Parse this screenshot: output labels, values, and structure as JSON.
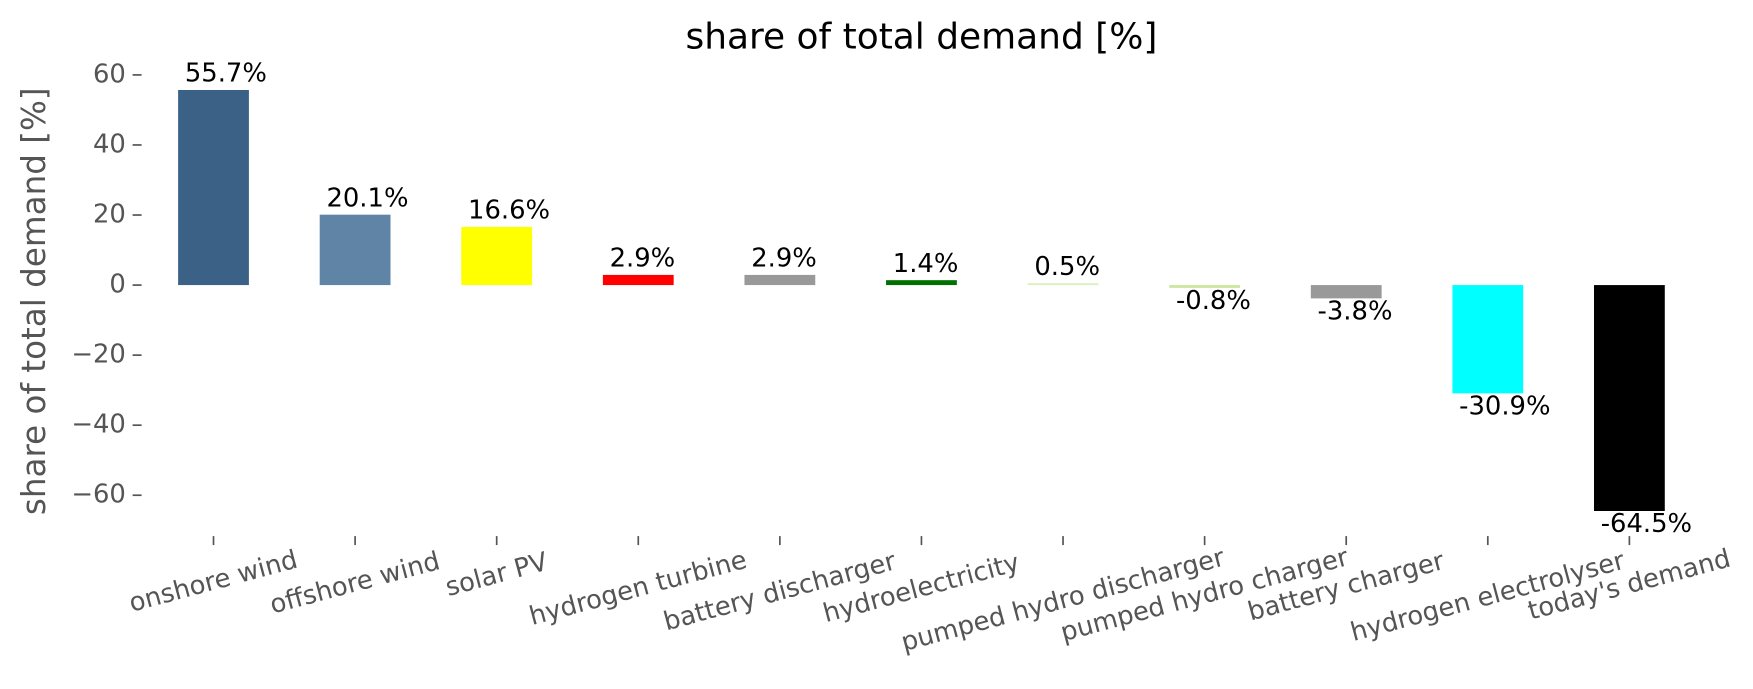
{
  "chart_data": {
    "type": "bar",
    "title": "share of total demand [%]",
    "ylabel": "share of total demand [%]",
    "categories": [
      "onshore wind",
      "offshore wind",
      "solar PV",
      "hydrogen turbine",
      "battery discharger",
      "hydroelectricity",
      "pumped hydro discharger",
      "pumped hydro charger",
      "battery charger",
      "hydrogen electrolyser",
      "today's demand"
    ],
    "values": [
      55.7,
      20.1,
      16.6,
      2.9,
      2.9,
      1.4,
      0.5,
      -0.8,
      -3.8,
      -30.9,
      -64.5
    ],
    "value_labels": [
      "55.7%",
      "20.1%",
      "16.6%",
      "2.9%",
      "2.9%",
      "1.4%",
      "0.5%",
      "-0.8%",
      "-3.8%",
      "-30.9%",
      "-64.5%"
    ],
    "colors": [
      "#3b6186",
      "#5f84a5",
      "#ffff00",
      "#ff0000",
      "#999999",
      "#007000",
      "#d6f0b5",
      "#cde6a0",
      "#999999",
      "#00ffff",
      "#000000"
    ],
    "ylim": [
      -70.5,
      61.7
    ],
    "yticks": [
      {
        "value": -60,
        "label": "−60"
      },
      {
        "value": -40,
        "label": "−40"
      },
      {
        "value": -20,
        "label": "−20"
      },
      0,
      20,
      40,
      60
    ],
    "grid": false
  }
}
